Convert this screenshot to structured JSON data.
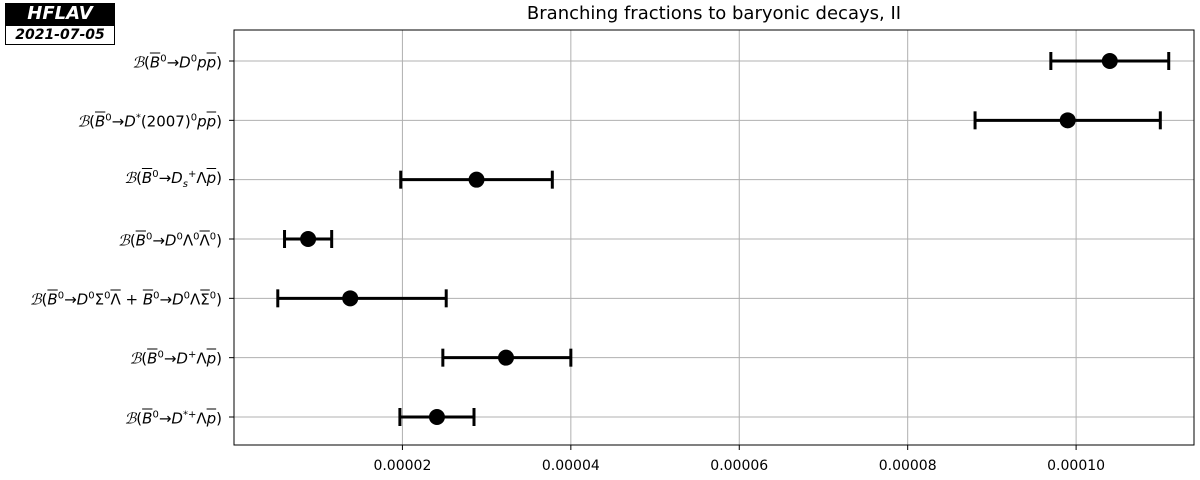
{
  "badge": {
    "name": "HFLAV",
    "date": "2021-07-05"
  },
  "chart_data": {
    "type": "errorbar",
    "title": "Branching fractions to baryonic decays, II",
    "xlabel": "",
    "ylabel": "",
    "xlim": [
      0.0,
      0.000114
    ],
    "xticks": [
      2e-05,
      4e-05,
      6e-05,
      8e-05,
      0.0001
    ],
    "xtick_labels": [
      "0.00002",
      "0.00004",
      "0.00006",
      "0.00008",
      "0.00010"
    ],
    "grid": true,
    "categories": [
      "𝓑(B̄⁰→D⁰pp̄)",
      "𝓑(B̄⁰→D*(2007)⁰pp̄)",
      "𝓑(B̄⁰→Ds⁺Λp̄)",
      "𝓑(B̄⁰→D⁰Λ⁰Λ̄⁰)",
      "𝓑(B̄⁰→D⁰Σ⁰Λ̄+B̄⁰→D⁰ΛΣ̄⁰)",
      "𝓑(B̄⁰→D⁺Λp̄)",
      "𝓑(B̄⁰→D*⁺Λp̄)"
    ],
    "values": [
      0.000104,
      9.9e-05,
      2.88e-05,
      8.8e-06,
      1.38e-05,
      3.23e-05,
      2.41e-05
    ],
    "err_low": [
      7e-06,
      1.1e-05,
      9e-06,
      2.8e-06,
      8.6e-06,
      7.5e-06,
      4.4e-06
    ],
    "err_high": [
      7e-06,
      1.1e-05,
      9e-06,
      2.8e-06,
      1.14e-05,
      7.7e-06,
      4.4e-06
    ],
    "marker_color": "#000000",
    "grid_color": "#b0b0b0"
  }
}
